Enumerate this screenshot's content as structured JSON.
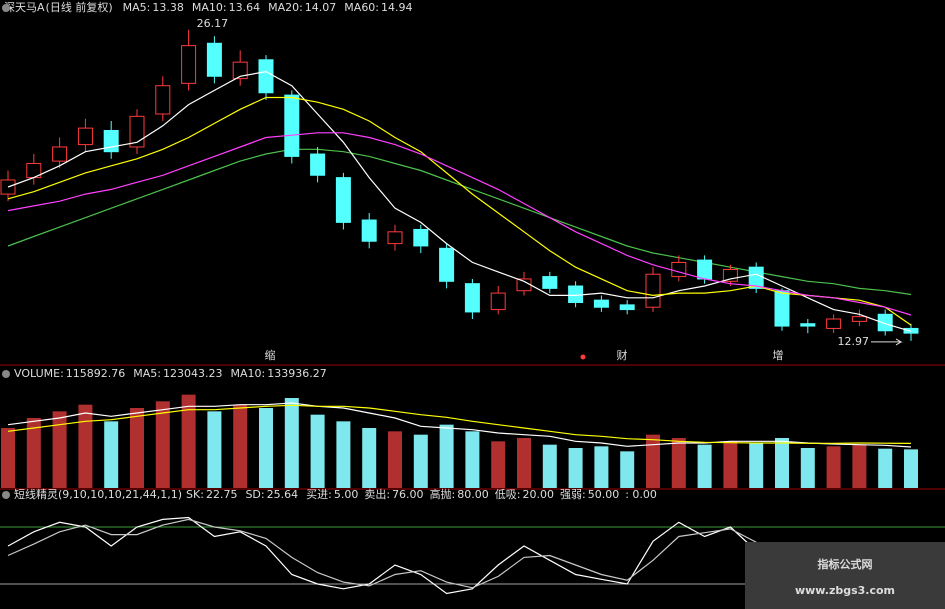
{
  "chart_data": [
    {
      "type": "candlestick",
      "title": "深天马A",
      "subtitle": "(日线 前复权)",
      "open": [
        19.2,
        19.9,
        20.6,
        21.3,
        21.9,
        21.2,
        22.6,
        23.9,
        25.6,
        24.1,
        24.9,
        23.4,
        20.9,
        19.9,
        18.1,
        17.1,
        17.7,
        16.9,
        15.4,
        14.3,
        15.1,
        15.7,
        15.3,
        14.7,
        14.5,
        14.4,
        15.7,
        16.4,
        15.5,
        16.1,
        15.1,
        13.7,
        13.5,
        13.8,
        14.1,
        13.5
      ],
      "high": [
        20.2,
        20.9,
        21.6,
        22.4,
        22.3,
        22.8,
        24.2,
        26.17,
        25.9,
        25.3,
        25.1,
        23.6,
        21.2,
        20.1,
        18.4,
        17.9,
        17.9,
        17.1,
        15.6,
        15.3,
        15.9,
        15.9,
        15.5,
        14.9,
        14.7,
        16.1,
        16.6,
        16.6,
        16.2,
        16.3,
        15.2,
        13.9,
        14.1,
        14.3,
        14.3,
        13.7
      ],
      "low": [
        18.9,
        19.6,
        20.3,
        21.0,
        20.7,
        20.9,
        22.3,
        23.6,
        23.9,
        23.8,
        23.2,
        20.5,
        19.7,
        17.7,
        16.9,
        16.8,
        16.7,
        15.2,
        13.9,
        14.1,
        14.9,
        15.0,
        14.4,
        14.2,
        14.1,
        14.2,
        15.5,
        15.4,
        15.3,
        15.0,
        13.4,
        13.3,
        13.3,
        13.6,
        13.2,
        12.97
      ],
      "close": [
        19.8,
        20.5,
        21.2,
        22.0,
        21.0,
        22.5,
        23.8,
        25.5,
        24.2,
        24.8,
        23.5,
        20.8,
        20.0,
        18.0,
        17.2,
        17.6,
        17.0,
        15.5,
        14.2,
        15.0,
        15.6,
        15.2,
        14.6,
        14.4,
        14.3,
        15.8,
        16.3,
        15.6,
        16.0,
        15.2,
        13.6,
        13.6,
        13.9,
        14.0,
        13.4,
        13.3
      ],
      "up_color": "#ff3b3b",
      "down_color": "#54ffff",
      "ylim": [
        12.5,
        26.8
      ],
      "series": [
        {
          "name": "MA5:",
          "color": "#ffffff",
          "values": [
            19.5,
            19.9,
            20.4,
            21.0,
            21.2,
            21.4,
            22.1,
            23.0,
            23.6,
            24.2,
            24.4,
            23.8,
            22.6,
            21.4,
            19.9,
            18.6,
            18.0,
            17.1,
            16.3,
            15.9,
            15.5,
            14.9,
            14.9,
            15.0,
            14.8,
            14.8,
            15.1,
            15.3,
            15.6,
            15.8,
            15.3,
            14.8,
            14.3,
            14.1,
            13.7,
            13.38
          ]
        },
        {
          "name": "MA10:",
          "color": "#ffff00",
          "values": [
            19.0,
            19.3,
            19.7,
            20.1,
            20.4,
            20.7,
            21.1,
            21.6,
            22.2,
            22.8,
            23.3,
            23.3,
            23.1,
            22.8,
            22.3,
            21.6,
            21.0,
            20.1,
            19.2,
            18.4,
            17.6,
            16.8,
            16.1,
            15.6,
            15.1,
            14.9,
            15.0,
            15.0,
            15.1,
            15.3,
            15.0,
            14.9,
            14.8,
            14.7,
            14.4,
            13.64
          ]
        },
        {
          "name": "MA20:",
          "color": "#ff40ff",
          "values": [
            18.5,
            18.7,
            18.9,
            19.2,
            19.4,
            19.7,
            20.0,
            20.4,
            20.8,
            21.2,
            21.6,
            21.7,
            21.8,
            21.8,
            21.6,
            21.3,
            20.9,
            20.4,
            19.9,
            19.4,
            18.8,
            18.2,
            17.6,
            17.1,
            16.6,
            16.2,
            15.9,
            15.6,
            15.4,
            15.3,
            15.1,
            14.9,
            14.8,
            14.6,
            14.4,
            14.07
          ]
        },
        {
          "name": "MA60:",
          "color": "#4cc04c",
          "values": [
            17.0,
            17.4,
            17.8,
            18.2,
            18.6,
            19.0,
            19.4,
            19.8,
            20.2,
            20.6,
            20.9,
            21.1,
            21.1,
            21.0,
            20.8,
            20.5,
            20.2,
            19.8,
            19.4,
            19.0,
            18.6,
            18.2,
            17.8,
            17.4,
            17.0,
            16.7,
            16.5,
            16.3,
            16.1,
            15.9,
            15.7,
            15.5,
            15.4,
            15.2,
            15.1,
            14.94
          ]
        }
      ],
      "events": [
        "缩",
        "财",
        "增"
      ]
    },
    {
      "type": "bar",
      "title": "VOLUME:",
      "values": [
        180000,
        210000,
        230000,
        250000,
        200000,
        240000,
        260000,
        280000,
        230000,
        250000,
        240000,
        270000,
        220000,
        200000,
        180000,
        170000,
        160000,
        190000,
        170000,
        140000,
        150000,
        130000,
        120000,
        125000,
        110000,
        160000,
        150000,
        130000,
        140000,
        135000,
        150000,
        120000,
        125000,
        130000,
        118000,
        115892.76
      ],
      "ylim": [
        0,
        300000
      ],
      "series": [
        {
          "name": "MA5:",
          "color": "#ffffff",
          "values": [
            190000,
            200000,
            210000,
            225000,
            215000,
            225000,
            235000,
            245000,
            245000,
            250000,
            250000,
            255000,
            245000,
            240000,
            225000,
            210000,
            185000,
            180000,
            175000,
            165000,
            160000,
            155000,
            140000,
            135000,
            125000,
            130000,
            135000,
            135000,
            140000,
            140000,
            140000,
            135000,
            132000,
            130000,
            128000,
            123043.23
          ]
        },
        {
          "name": "MA10:",
          "color": "#ffff00",
          "values": [
            170000,
            180000,
            190000,
            200000,
            205000,
            215000,
            225000,
            235000,
            235000,
            240000,
            245000,
            248000,
            245000,
            245000,
            240000,
            230000,
            220000,
            212000,
            200000,
            190000,
            180000,
            170000,
            160000,
            155000,
            148000,
            145000,
            140000,
            137000,
            136000,
            135000,
            135000,
            134000,
            134000,
            135000,
            134500,
            133936.27
          ]
        }
      ]
    },
    {
      "type": "line",
      "title": "短线精灵(9,10,10,10,21,44,1,1)",
      "ylim": [
        0,
        100
      ],
      "series": [
        {
          "name": "SK:",
          "color": "#ffffff",
          "values": [
            60,
            75,
            85,
            80,
            60,
            80,
            88,
            90,
            70,
            75,
            60,
            30,
            20,
            15,
            20,
            40,
            30,
            10,
            15,
            40,
            60,
            45,
            30,
            25,
            20,
            65,
            85,
            70,
            80,
            55,
            15,
            20,
            35,
            45,
            30,
            22.75
          ]
        },
        {
          "name": "SD:",
          "color": "#c8c8c8",
          "values": [
            50,
            62,
            75,
            82,
            72,
            72,
            82,
            88,
            80,
            76,
            68,
            48,
            32,
            22,
            18,
            30,
            34,
            22,
            16,
            28,
            48,
            50,
            40,
            30,
            24,
            45,
            70,
            74,
            78,
            64,
            35,
            22,
            28,
            38,
            36,
            25.64
          ]
        }
      ],
      "levels": [
        {
          "name": "买进:",
          "value": 5,
          "label": "5.00",
          "color": "#ff40ff"
        },
        {
          "name": "卖出:",
          "value": 76,
          "label": "76.00",
          "color": "#4cc04c"
        },
        {
          "name": "高抛:",
          "value": 80,
          "label": "80.00",
          "color": "#4cc04c"
        },
        {
          "name": "低吸:",
          "value": 20,
          "label": "20.00",
          "color": "#cccccc"
        },
        {
          "name": "强弱:",
          "value": 50,
          "label": "50.00",
          "color": "#cccccc"
        }
      ],
      "extra": ": 0.00"
    }
  ],
  "watermark": {
    "title": "指标公式网",
    "url": "www.zbgs3.com"
  }
}
